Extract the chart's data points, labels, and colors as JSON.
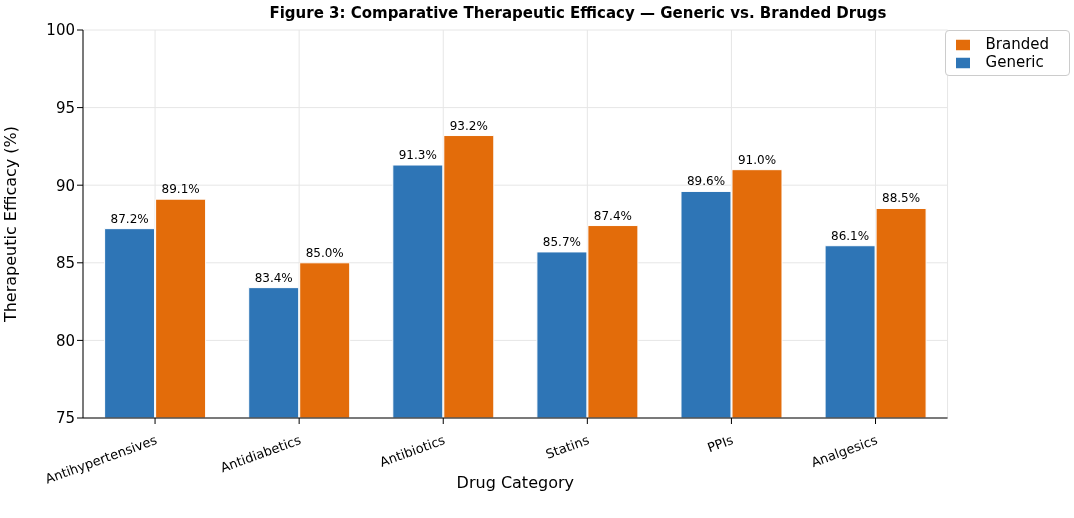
{
  "chart_data": {
    "type": "bar",
    "title": "Figure 3: Comparative Therapeutic Efficacy — Generic vs. Branded Drugs",
    "xlabel": "Drug Category",
    "ylabel": "Therapeutic Efficacy (%)",
    "categories": [
      "Antihypertensives",
      "Antidiabetics",
      "Antibiotics",
      "Statins",
      "PPIs",
      "Analgesics"
    ],
    "series": [
      {
        "name": "Generic",
        "color": "#2e75b6",
        "values": [
          87.2,
          83.4,
          91.3,
          85.7,
          89.6,
          86.1
        ],
        "value_labels": [
          "87.2%",
          "83.4%",
          "91.3%",
          "85.7%",
          "89.6%",
          "86.1%"
        ]
      },
      {
        "name": "Branded",
        "color": "#e36c0a",
        "values": [
          89.1,
          85.0,
          93.2,
          87.4,
          91.0,
          88.5
        ],
        "value_labels": [
          "89.1%",
          "85.0%",
          "93.2%",
          "87.4%",
          "91.0%",
          "88.5%"
        ]
      }
    ],
    "ylim": [
      75,
      100
    ],
    "yticks": [
      75,
      80,
      85,
      90,
      95,
      100
    ],
    "grid": true,
    "legend": "top right"
  }
}
